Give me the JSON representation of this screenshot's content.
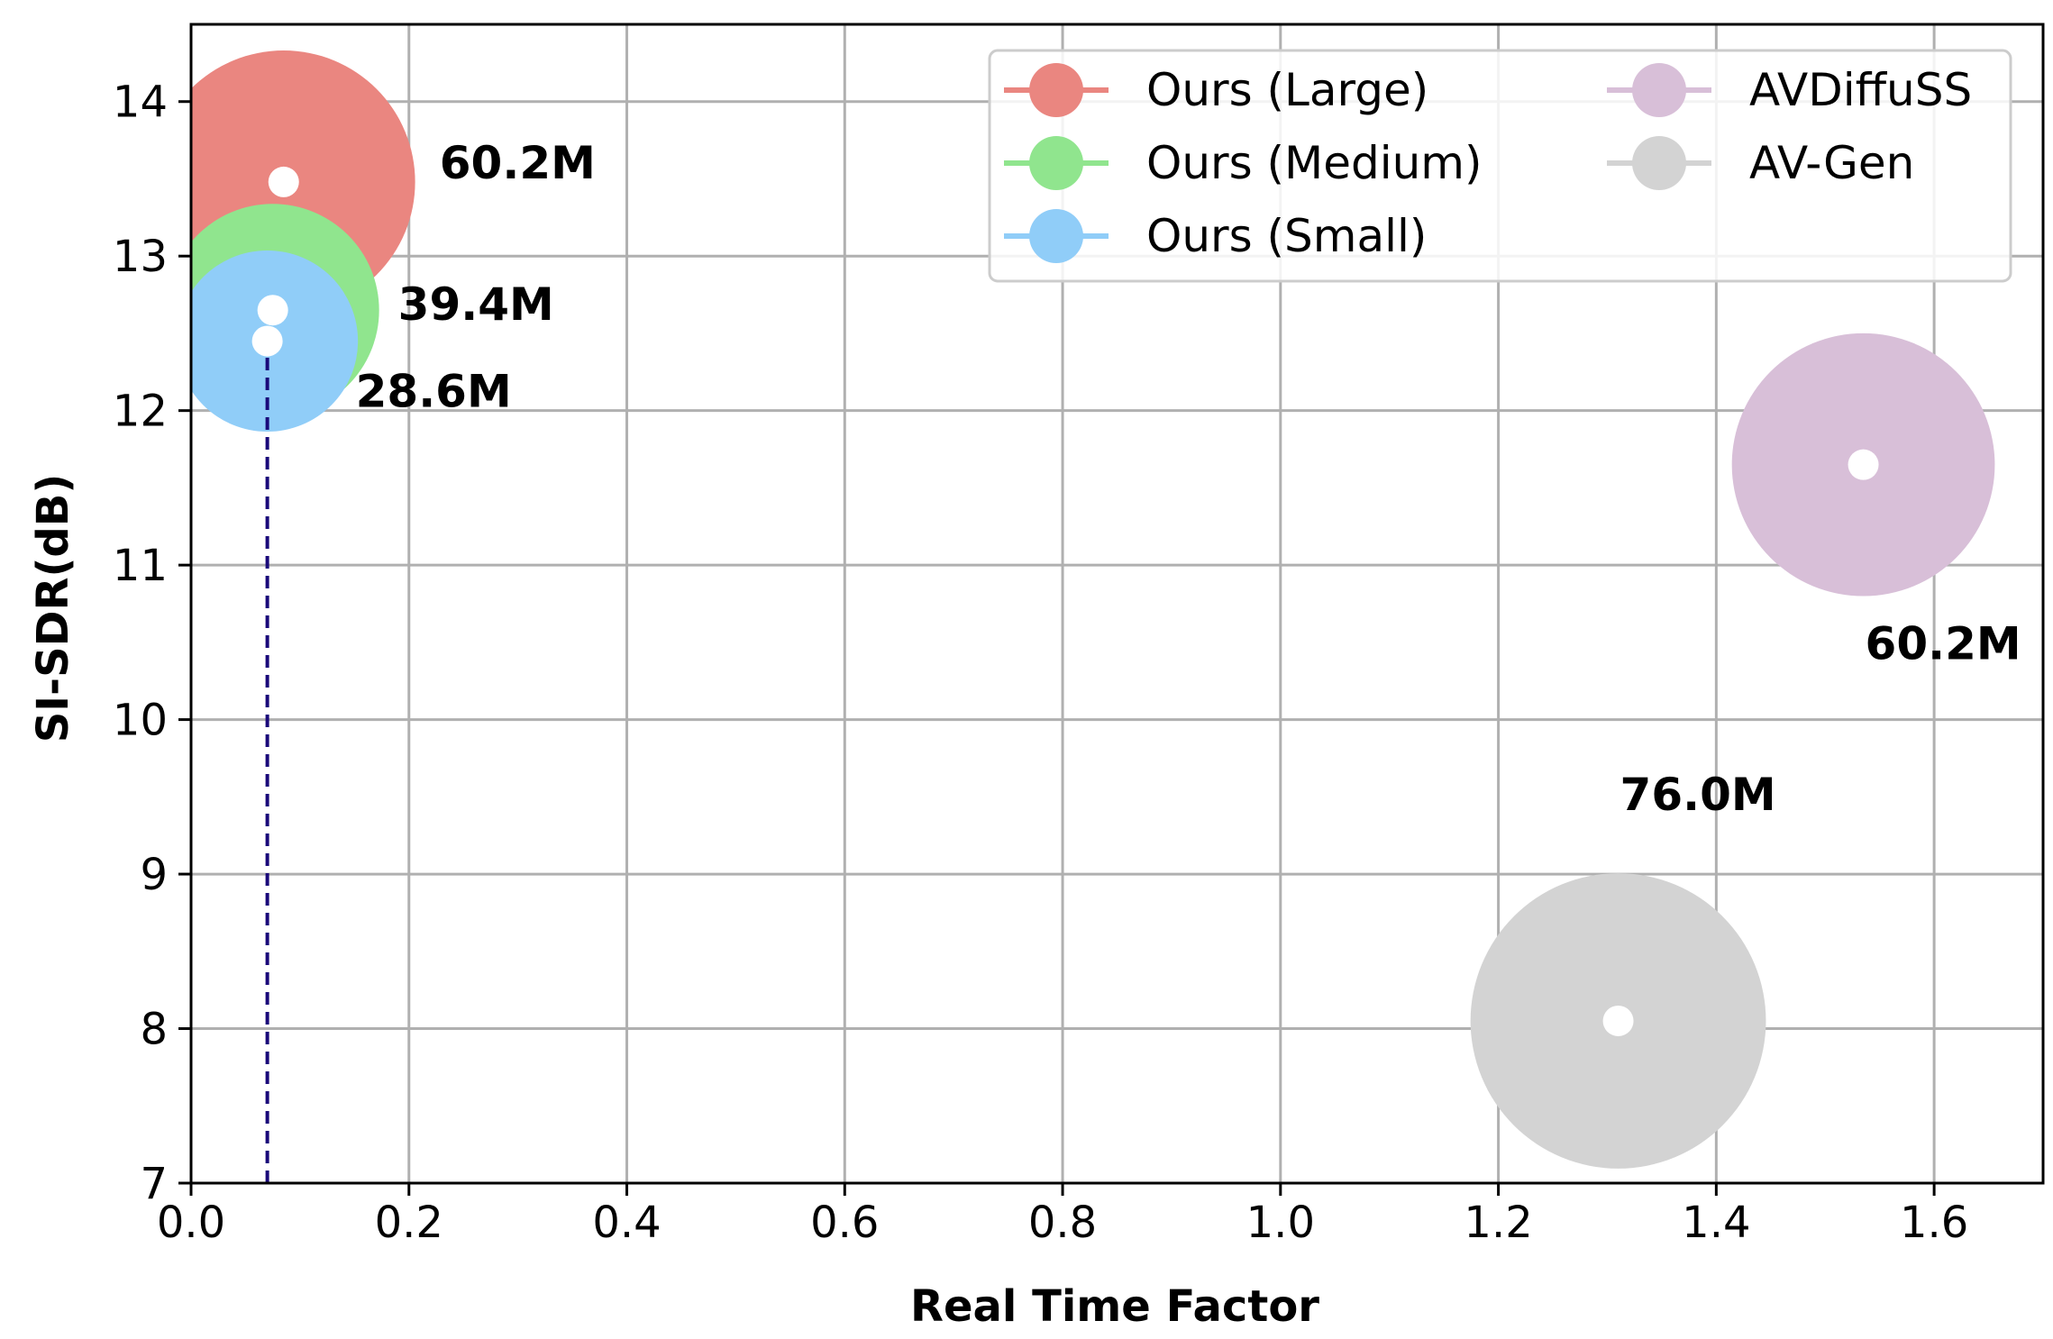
{
  "chart_data": {
    "type": "scatter",
    "xlabel": "Real Time Factor",
    "ylabel": "SI-SDR(dB)",
    "xlim": [
      0.0,
      1.7
    ],
    "ylim": [
      7,
      14.5
    ],
    "xticks": [
      "0.0",
      "0.2",
      "0.4",
      "0.6",
      "0.8",
      "1.0",
      "1.2",
      "1.4",
      "1.6"
    ],
    "yticks": [
      "7",
      "8",
      "9",
      "10",
      "11",
      "12",
      "13",
      "14"
    ],
    "grid": true,
    "legend_position": "top-right",
    "series": [
      {
        "name": "Ours (Large)",
        "x": 0.085,
        "y": 13.48,
        "params_m": 60.2,
        "label": "60.2M",
        "color": "#ea8680"
      },
      {
        "name": "Ours (Medium)",
        "x": 0.075,
        "y": 12.65,
        "params_m": 39.4,
        "label": "39.4M",
        "color": "#90e58e"
      },
      {
        "name": "Ours (Small)",
        "x": 0.07,
        "y": 12.45,
        "params_m": 28.6,
        "label": "28.6M",
        "color": "#90cdf8"
      },
      {
        "name": "AVDiffuSS",
        "x": 1.535,
        "y": 11.65,
        "params_m": 60.2,
        "label": "60.2M",
        "color": "#d8bfd8"
      },
      {
        "name": "AV-Gen",
        "x": 1.31,
        "y": 8.05,
        "params_m": 76.0,
        "label": "76.0M",
        "color": "#d3d3d3"
      }
    ],
    "reference_line": {
      "x": 0.07,
      "y_from": 7,
      "y_to": 12.35,
      "style": "dashed",
      "color": "#1a0a7a"
    }
  }
}
